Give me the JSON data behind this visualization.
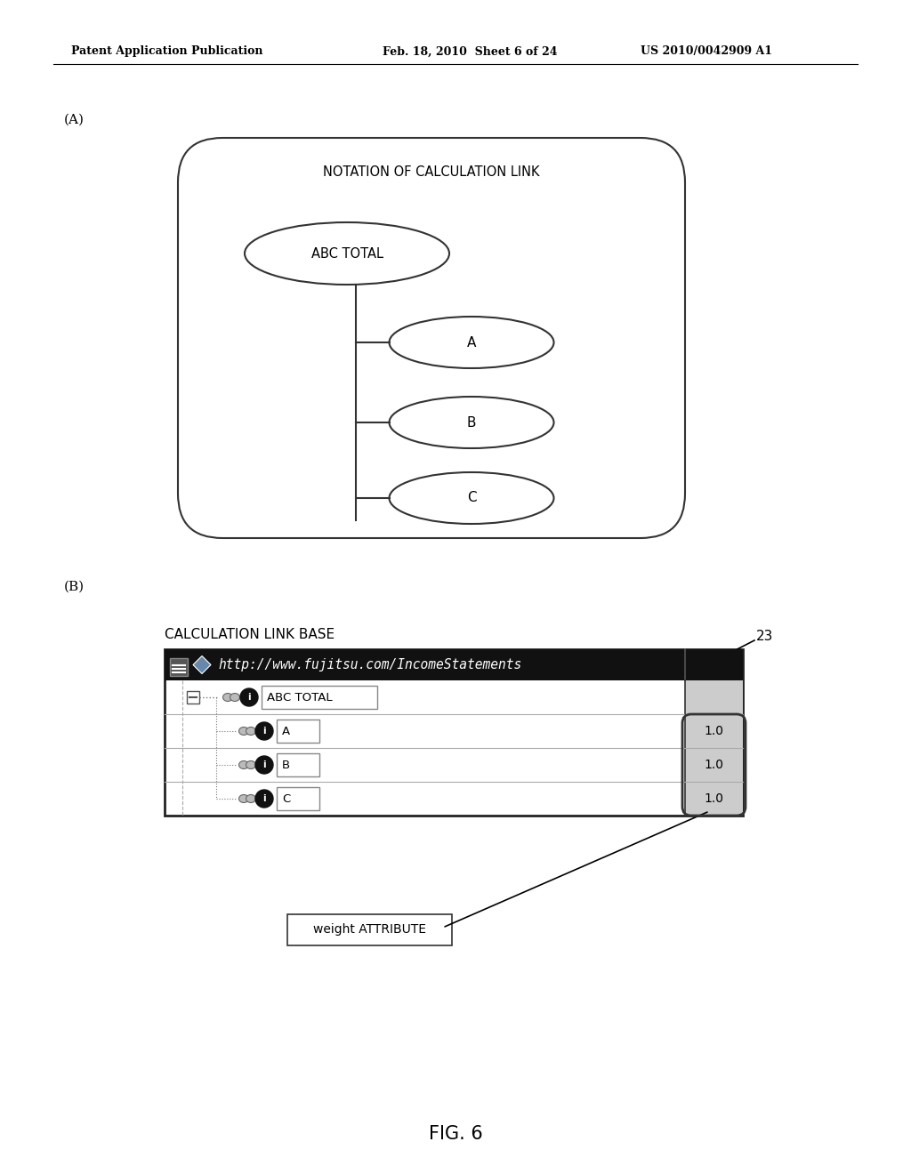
{
  "header_left": "Patent Application Publication",
  "header_mid": "Feb. 18, 2010  Sheet 6 of 24",
  "header_right": "US 2010/0042909 A1",
  "label_a": "(A)",
  "label_b": "(B)",
  "box_title": "NOTATION OF CALCULATION LINK",
  "abc_total_label": "ABC TOTAL",
  "child_labels": [
    "A",
    "B",
    "C"
  ],
  "calc_link_base_label": "CALCULATION LINK BASE",
  "url": "http://www.fujitsu.com/IncomeStatements",
  "weight_label": "weight ATTRIBUTE",
  "reference_num": "23",
  "row_items": [
    "ABC TOTAL",
    "A",
    "B",
    "C"
  ],
  "weight_values": [
    "",
    "1.0",
    "1.0",
    "1.0"
  ],
  "fig_label": "FIG. 6",
  "bg_color": "#ffffff",
  "line_color": "#000000"
}
